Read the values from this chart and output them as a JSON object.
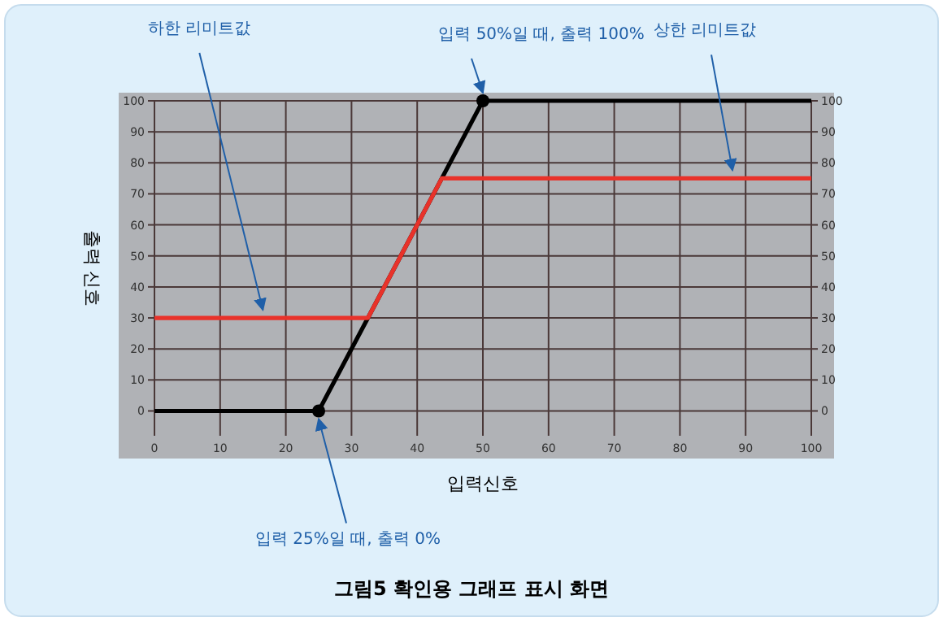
{
  "chart_data": {
    "type": "line",
    "title": "그림5 확인용 그래프 표시 화면",
    "xlabel": "입력신호",
    "ylabel": "출력 신호",
    "xlim": [
      0,
      100
    ],
    "xticks": [
      0,
      10,
      20,
      30,
      40,
      50,
      60,
      70,
      80,
      90,
      100
    ],
    "ylim": [
      -8,
      100
    ],
    "yticks": [
      0,
      10,
      20,
      30,
      40,
      50,
      60,
      70,
      80,
      90,
      100
    ],
    "y2lim": [
      -8,
      100
    ],
    "y2ticks": [
      0,
      10,
      20,
      30,
      40,
      50,
      60,
      70,
      80,
      90,
      100
    ],
    "grid": true,
    "series": [
      {
        "color": "#000000",
        "marker": "none",
        "x": [
          0,
          25,
          50,
          100
        ],
        "values": [
          0,
          0,
          100,
          100
        ]
      },
      {
        "color": "#e8322a",
        "marker": "none",
        "x": [
          0,
          32.5,
          43.75,
          100
        ],
        "values": [
          30,
          30,
          75,
          75
        ]
      },
      {
        "type": "scatter",
        "color": "#000000",
        "marker": "circle",
        "x": [
          25,
          50
        ],
        "values": [
          0,
          100
        ]
      }
    ],
    "annotations": [
      {
        "text": "하한 리미트값",
        "x": 16.5,
        "y": 30
      },
      {
        "text": "입력 50%일 때, 출력 100%",
        "x": 50,
        "y": 100
      },
      {
        "text": "상한 리미트값",
        "x": 88,
        "y": 75
      },
      {
        "text": "입력 25%일 때, 출력 0%",
        "x": 25,
        "y": 0
      }
    ]
  }
}
